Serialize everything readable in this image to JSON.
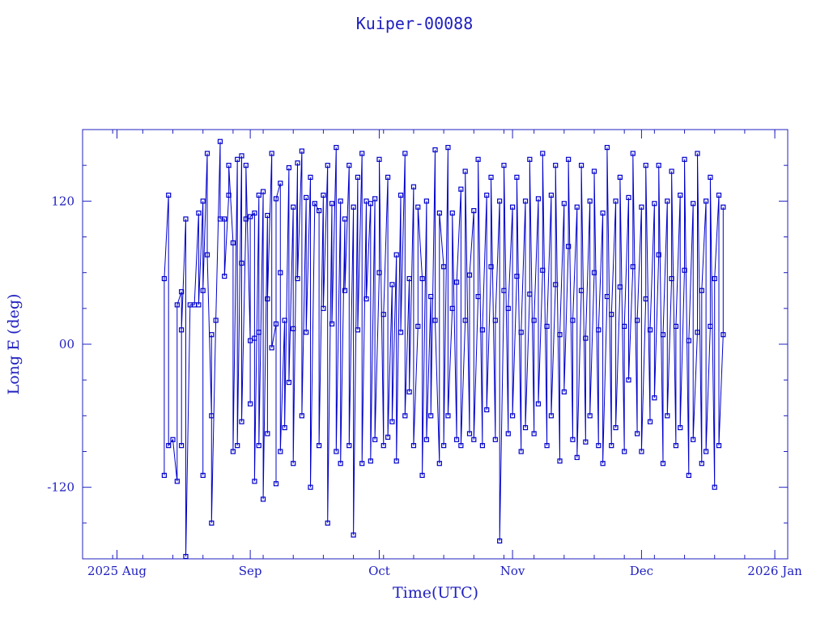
{
  "chart_data": {
    "type": "scatter",
    "title": "Kuiper-00088",
    "xlabel": "Time(UTC)",
    "ylabel": "Long E (deg)",
    "x_range": [
      "2025-07-24",
      "2026-01-04"
    ],
    "ylim": [
      -180,
      180
    ],
    "x_ticks": [
      {
        "date": "2025-08-01",
        "label": "2025 Aug"
      },
      {
        "date": "2025-09-01",
        "label": "Sep"
      },
      {
        "date": "2025-10-01",
        "label": "Oct"
      },
      {
        "date": "2025-11-01",
        "label": "Nov"
      },
      {
        "date": "2025-12-01",
        "label": "Dec"
      },
      {
        "date": "2026-01-01",
        "label": "2026 Jan"
      }
    ],
    "y_ticks": [
      {
        "value": 120,
        "label": "120"
      },
      {
        "value": 0,
        "label": "00"
      },
      {
        "value": -120,
        "label": "-120"
      }
    ],
    "series": [
      {
        "color": "#0000cc",
        "marker": "square",
        "line": true,
        "points": [
          [
            "2025-08-12",
            -110
          ],
          [
            "2025-08-12",
            55
          ],
          [
            "2025-08-13",
            125
          ],
          [
            "2025-08-13",
            -85
          ],
          [
            "2025-08-14",
            -80
          ],
          [
            "2025-08-15",
            -115
          ],
          [
            "2025-08-15",
            33
          ],
          [
            "2025-08-16",
            44
          ],
          [
            "2025-08-16",
            -85
          ],
          [
            "2025-08-16",
            12
          ],
          [
            "2025-08-17",
            105
          ],
          [
            "2025-08-17",
            -178
          ],
          [
            "2025-08-18",
            33
          ],
          [
            "2025-08-19",
            33
          ],
          [
            "2025-08-20",
            110
          ],
          [
            "2025-08-20",
            33
          ],
          [
            "2025-08-21",
            120
          ],
          [
            "2025-08-21",
            -110
          ],
          [
            "2025-08-21",
            45
          ],
          [
            "2025-08-22",
            160
          ],
          [
            "2025-08-22",
            75
          ],
          [
            "2025-08-23",
            -60
          ],
          [
            "2025-08-23",
            8
          ],
          [
            "2025-08-23",
            -150
          ],
          [
            "2025-08-24",
            20
          ],
          [
            "2025-08-25",
            170
          ],
          [
            "2025-08-25",
            105
          ],
          [
            "2025-08-26",
            105
          ],
          [
            "2025-08-26",
            57
          ],
          [
            "2025-08-27",
            125
          ],
          [
            "2025-08-27",
            150
          ],
          [
            "2025-08-28",
            85
          ],
          [
            "2025-08-28",
            -90
          ],
          [
            "2025-08-29",
            155
          ],
          [
            "2025-08-29",
            -85
          ],
          [
            "2025-08-30",
            158
          ],
          [
            "2025-08-30",
            68
          ],
          [
            "2025-08-30",
            -65
          ],
          [
            "2025-08-31",
            105
          ],
          [
            "2025-08-31",
            150
          ],
          [
            "2025-09-01",
            3
          ],
          [
            "2025-09-01",
            -50
          ],
          [
            "2025-09-01",
            107
          ],
          [
            "2025-09-02",
            110
          ],
          [
            "2025-09-02",
            5
          ],
          [
            "2025-09-02",
            -115
          ],
          [
            "2025-09-03",
            125
          ],
          [
            "2025-09-03",
            10
          ],
          [
            "2025-09-03",
            -85
          ],
          [
            "2025-09-04",
            128
          ],
          [
            "2025-09-04",
            -130
          ],
          [
            "2025-09-05",
            108
          ],
          [
            "2025-09-05",
            -75
          ],
          [
            "2025-09-05",
            38
          ],
          [
            "2025-09-06",
            160
          ],
          [
            "2025-09-06",
            -3
          ],
          [
            "2025-09-07",
            17
          ],
          [
            "2025-09-07",
            -117
          ],
          [
            "2025-09-07",
            122
          ],
          [
            "2025-09-08",
            135
          ],
          [
            "2025-09-08",
            60
          ],
          [
            "2025-09-08",
            -90
          ],
          [
            "2025-09-09",
            20
          ],
          [
            "2025-09-09",
            -70
          ],
          [
            "2025-09-10",
            148
          ],
          [
            "2025-09-10",
            -32
          ],
          [
            "2025-09-11",
            115
          ],
          [
            "2025-09-11",
            13
          ],
          [
            "2025-09-11",
            -100
          ],
          [
            "2025-09-12",
            152
          ],
          [
            "2025-09-12",
            55
          ],
          [
            "2025-09-13",
            162
          ],
          [
            "2025-09-13",
            -60
          ],
          [
            "2025-09-14",
            123
          ],
          [
            "2025-09-14",
            10
          ],
          [
            "2025-09-15",
            140
          ],
          [
            "2025-09-15",
            -120
          ],
          [
            "2025-09-16",
            118
          ],
          [
            "2025-09-17",
            112
          ],
          [
            "2025-09-17",
            -85
          ],
          [
            "2025-09-18",
            125
          ],
          [
            "2025-09-18",
            30
          ],
          [
            "2025-09-19",
            150
          ],
          [
            "2025-09-19",
            -150
          ],
          [
            "2025-09-20",
            118
          ],
          [
            "2025-09-20",
            17
          ],
          [
            "2025-09-21",
            165
          ],
          [
            "2025-09-21",
            -90
          ],
          [
            "2025-09-22",
            120
          ],
          [
            "2025-09-22",
            -100
          ],
          [
            "2025-09-23",
            105
          ],
          [
            "2025-09-23",
            45
          ],
          [
            "2025-09-24",
            150
          ],
          [
            "2025-09-24",
            -85
          ],
          [
            "2025-09-25",
            115
          ],
          [
            "2025-09-25",
            -160
          ],
          [
            "2025-09-26",
            140
          ],
          [
            "2025-09-26",
            12
          ],
          [
            "2025-09-27",
            160
          ],
          [
            "2025-09-27",
            -100
          ],
          [
            "2025-09-28",
            120
          ],
          [
            "2025-09-28",
            38
          ],
          [
            "2025-09-29",
            118
          ],
          [
            "2025-09-29",
            -98
          ],
          [
            "2025-09-30",
            122
          ],
          [
            "2025-09-30",
            -80
          ],
          [
            "2025-10-01",
            60
          ],
          [
            "2025-10-01",
            155
          ],
          [
            "2025-10-02",
            -85
          ],
          [
            "2025-10-02",
            25
          ],
          [
            "2025-10-03",
            140
          ],
          [
            "2025-10-03",
            -78
          ],
          [
            "2025-10-04",
            50
          ],
          [
            "2025-10-04",
            -65
          ],
          [
            "2025-10-05",
            75
          ],
          [
            "2025-10-05",
            -98
          ],
          [
            "2025-10-06",
            125
          ],
          [
            "2025-10-06",
            10
          ],
          [
            "2025-10-07",
            160
          ],
          [
            "2025-10-07",
            -60
          ],
          [
            "2025-10-08",
            55
          ],
          [
            "2025-10-08",
            -40
          ],
          [
            "2025-10-09",
            132
          ],
          [
            "2025-10-09",
            -85
          ],
          [
            "2025-10-10",
            15
          ],
          [
            "2025-10-10",
            115
          ],
          [
            "2025-10-11",
            55
          ],
          [
            "2025-10-11",
            -110
          ],
          [
            "2025-10-12",
            120
          ],
          [
            "2025-10-12",
            -80
          ],
          [
            "2025-10-13",
            40
          ],
          [
            "2025-10-13",
            -60
          ],
          [
            "2025-10-14",
            163
          ],
          [
            "2025-10-14",
            20
          ],
          [
            "2025-10-15",
            -100
          ],
          [
            "2025-10-15",
            110
          ],
          [
            "2025-10-16",
            65
          ],
          [
            "2025-10-16",
            -85
          ],
          [
            "2025-10-17",
            165
          ],
          [
            "2025-10-17",
            -60
          ],
          [
            "2025-10-18",
            30
          ],
          [
            "2025-10-18",
            110
          ],
          [
            "2025-10-19",
            -80
          ],
          [
            "2025-10-19",
            52
          ],
          [
            "2025-10-20",
            130
          ],
          [
            "2025-10-20",
            -85
          ],
          [
            "2025-10-21",
            20
          ],
          [
            "2025-10-21",
            145
          ],
          [
            "2025-10-22",
            -75
          ],
          [
            "2025-10-22",
            58
          ],
          [
            "2025-10-23",
            112
          ],
          [
            "2025-10-23",
            -80
          ],
          [
            "2025-10-24",
            40
          ],
          [
            "2025-10-24",
            155
          ],
          [
            "2025-10-25",
            -85
          ],
          [
            "2025-10-25",
            12
          ],
          [
            "2025-10-26",
            125
          ],
          [
            "2025-10-26",
            -55
          ],
          [
            "2025-10-27",
            65
          ],
          [
            "2025-10-27",
            140
          ],
          [
            "2025-10-28",
            -80
          ],
          [
            "2025-10-28",
            20
          ],
          [
            "2025-10-29",
            120
          ],
          [
            "2025-10-29",
            -165
          ],
          [
            "2025-10-30",
            45
          ],
          [
            "2025-10-30",
            150
          ],
          [
            "2025-10-31",
            -75
          ],
          [
            "2025-10-31",
            30
          ],
          [
            "2025-11-01",
            115
          ],
          [
            "2025-11-01",
            -60
          ],
          [
            "2025-11-02",
            57
          ],
          [
            "2025-11-02",
            140
          ],
          [
            "2025-11-03",
            -90
          ],
          [
            "2025-11-03",
            10
          ],
          [
            "2025-11-04",
            120
          ],
          [
            "2025-11-04",
            -70
          ],
          [
            "2025-11-05",
            42
          ],
          [
            "2025-11-05",
            155
          ],
          [
            "2025-11-06",
            -75
          ],
          [
            "2025-11-06",
            20
          ],
          [
            "2025-11-07",
            122
          ],
          [
            "2025-11-07",
            -50
          ],
          [
            "2025-11-08",
            62
          ],
          [
            "2025-11-08",
            160
          ],
          [
            "2025-11-09",
            -85
          ],
          [
            "2025-11-09",
            15
          ],
          [
            "2025-11-10",
            125
          ],
          [
            "2025-11-10",
            -60
          ],
          [
            "2025-11-11",
            50
          ],
          [
            "2025-11-11",
            150
          ],
          [
            "2025-11-12",
            -98
          ],
          [
            "2025-11-12",
            8
          ],
          [
            "2025-11-13",
            118
          ],
          [
            "2025-11-13",
            -40
          ],
          [
            "2025-11-14",
            82
          ],
          [
            "2025-11-14",
            155
          ],
          [
            "2025-11-15",
            -80
          ],
          [
            "2025-11-15",
            20
          ],
          [
            "2025-11-16",
            115
          ],
          [
            "2025-11-16",
            -95
          ],
          [
            "2025-11-17",
            45
          ],
          [
            "2025-11-17",
            150
          ],
          [
            "2025-11-18",
            -82
          ],
          [
            "2025-11-18",
            5
          ],
          [
            "2025-11-19",
            120
          ],
          [
            "2025-11-19",
            -60
          ],
          [
            "2025-11-20",
            60
          ],
          [
            "2025-11-20",
            145
          ],
          [
            "2025-11-21",
            -85
          ],
          [
            "2025-11-21",
            12
          ],
          [
            "2025-11-22",
            110
          ],
          [
            "2025-11-22",
            -100
          ],
          [
            "2025-11-23",
            40
          ],
          [
            "2025-11-23",
            165
          ],
          [
            "2025-11-24",
            -85
          ],
          [
            "2025-11-24",
            25
          ],
          [
            "2025-11-25",
            120
          ],
          [
            "2025-11-25",
            -70
          ],
          [
            "2025-11-26",
            48
          ],
          [
            "2025-11-26",
            140
          ],
          [
            "2025-11-27",
            -90
          ],
          [
            "2025-11-27",
            15
          ],
          [
            "2025-11-28",
            123
          ],
          [
            "2025-11-28",
            -30
          ],
          [
            "2025-11-29",
            65
          ],
          [
            "2025-11-29",
            160
          ],
          [
            "2025-11-30",
            -75
          ],
          [
            "2025-11-30",
            20
          ],
          [
            "2025-12-01",
            115
          ],
          [
            "2025-12-01",
            -90
          ],
          [
            "2025-12-02",
            38
          ],
          [
            "2025-12-02",
            150
          ],
          [
            "2025-12-03",
            -65
          ],
          [
            "2025-12-03",
            12
          ],
          [
            "2025-12-04",
            118
          ],
          [
            "2025-12-04",
            -45
          ],
          [
            "2025-12-05",
            75
          ],
          [
            "2025-12-05",
            150
          ],
          [
            "2025-12-06",
            -100
          ],
          [
            "2025-12-06",
            8
          ],
          [
            "2025-12-07",
            120
          ],
          [
            "2025-12-07",
            -60
          ],
          [
            "2025-12-08",
            55
          ],
          [
            "2025-12-08",
            145
          ],
          [
            "2025-12-09",
            -85
          ],
          [
            "2025-12-09",
            15
          ],
          [
            "2025-12-10",
            125
          ],
          [
            "2025-12-10",
            -70
          ],
          [
            "2025-12-11",
            62
          ],
          [
            "2025-12-11",
            155
          ],
          [
            "2025-12-12",
            -110
          ],
          [
            "2025-12-12",
            3
          ],
          [
            "2025-12-13",
            118
          ],
          [
            "2025-12-13",
            -80
          ],
          [
            "2025-12-14",
            10
          ],
          [
            "2025-12-14",
            160
          ],
          [
            "2025-12-15",
            -100
          ],
          [
            "2025-12-15",
            45
          ],
          [
            "2025-12-16",
            120
          ],
          [
            "2025-12-16",
            -90
          ],
          [
            "2025-12-17",
            15
          ],
          [
            "2025-12-17",
            140
          ],
          [
            "2025-12-18",
            -120
          ],
          [
            "2025-12-18",
            55
          ],
          [
            "2025-12-19",
            125
          ],
          [
            "2025-12-19",
            -85
          ],
          [
            "2025-12-20",
            8
          ],
          [
            "2025-12-20",
            115
          ]
        ]
      }
    ]
  }
}
